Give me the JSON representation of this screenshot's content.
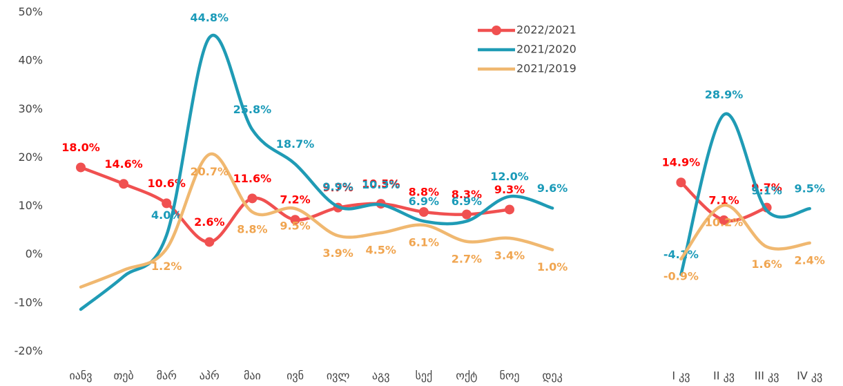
{
  "chart_data": {
    "type": "line",
    "categories": [
      "იანვ",
      "თებ",
      "მარ",
      "აპრ",
      "მაი",
      "ივნ",
      "ივლ",
      "აგვ",
      "სექ",
      "ოქტ",
      "ნოე",
      "დეკ",
      null,
      null,
      "I კვ",
      "II კვ",
      "III კვ",
      "IV კვ"
    ],
    "series": [
      {
        "name": "2022/2021",
        "color": "#f05050",
        "label_color": "#ff0000",
        "markers": true,
        "values": [
          18.0,
          14.6,
          10.6,
          2.6,
          11.6,
          7.2,
          9.7,
          10.5,
          8.8,
          8.3,
          9.3,
          null,
          null,
          null,
          14.9,
          7.1,
          9.7,
          null
        ],
        "value_labels": [
          "18.0%",
          "14.6%",
          "10.6%",
          "2.6%",
          "11.6%",
          "7.2%",
          "9.7%",
          "10.5%",
          "8.8%",
          "8.3%",
          "9.3%",
          null,
          null,
          null,
          "14.9%",
          "7.1%",
          "9.7%",
          null
        ]
      },
      {
        "name": "2021/2020",
        "color": "#1f9bb5",
        "label_color": "#1a9ab8",
        "markers": false,
        "values": [
          -11.3,
          -4.5,
          4.0,
          44.8,
          25.8,
          18.7,
          9.9,
          10.3,
          6.9,
          6.9,
          12.0,
          9.6,
          null,
          null,
          -4.1,
          28.9,
          9.1,
          9.5
        ],
        "value_labels": [
          null,
          null,
          "4.0%",
          "44.8%",
          "25.8%",
          "18.7%",
          "9.9%",
          "10.3%",
          "6.9%",
          "6.9%",
          "12.0%",
          "9.6%",
          null,
          null,
          "-4.1%",
          "28.9%",
          "9.1%",
          "9.5%"
        ]
      },
      {
        "name": "2021/2019",
        "color": "#f0b870",
        "label_color": "#f0a550",
        "markers": false,
        "values": [
          -6.7,
          -3.2,
          1.2,
          20.7,
          8.8,
          9.5,
          3.9,
          4.5,
          6.1,
          2.7,
          3.4,
          1.0,
          null,
          null,
          -0.9,
          10.2,
          1.6,
          2.4
        ],
        "value_labels": [
          null,
          null,
          "1.2%",
          "20.7%",
          "8.8%",
          "9.5%",
          "3.9%",
          "4.5%",
          "6.1%",
          "2.7%",
          "3.4%",
          "1.0%",
          null,
          null,
          "-0.9%",
          "10.2%",
          "1.6%",
          "2.4%"
        ]
      }
    ],
    "ylim": [
      -20,
      50
    ],
    "yticks": [
      {
        "value": -20,
        "label": "-20%"
      },
      {
        "value": -10,
        "label": "-10%"
      },
      {
        "value": 0,
        "label": "0%"
      },
      {
        "value": 10,
        "label": "10%"
      },
      {
        "value": 20,
        "label": "20%"
      },
      {
        "value": 30,
        "label": "30%"
      },
      {
        "value": 40,
        "label": "40%"
      },
      {
        "value": 50,
        "label": "50%"
      }
    ],
    "grid": false,
    "legend": "top-right"
  }
}
